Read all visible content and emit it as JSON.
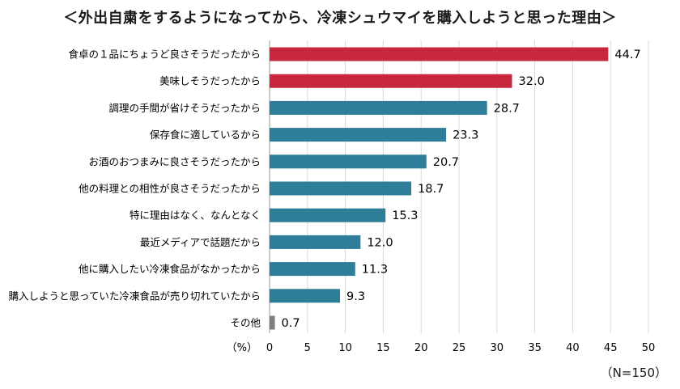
{
  "chart_data": {
    "type": "bar",
    "orientation": "horizontal",
    "title": "＜外出自粛をするようになってから、冷凍シュウマイを購入しようと思った理由＞",
    "categories": [
      "食卓の１品にちょうど良さそうだったから",
      "美味しそうだったから",
      "調理の手間が省けそうだったから",
      "保存食に適しているから",
      "お酒のおつまみに良さそうだったから",
      "他の料理との相性が良さそうだったから",
      "特に理由はなく、なんとなく",
      "最近メディアで話題だから",
      "他に購入したい冷凍食品がなかったから",
      "購入しようと思っていた冷凍食品が売り切れていたから",
      "その他"
    ],
    "values": [
      44.7,
      32.0,
      28.7,
      23.3,
      20.7,
      18.7,
      15.3,
      12.0,
      11.3,
      9.3,
      0.7
    ],
    "value_labels": [
      "44.7",
      "32.0",
      "28.7",
      "23.3",
      "20.7",
      "18.7",
      "15.3",
      "12.0",
      "11.3",
      "9.3",
      "0.7"
    ],
    "bar_colors": [
      "#c8283e",
      "#c8283e",
      "#2e7d99",
      "#2e7d99",
      "#2e7d99",
      "#2e7d99",
      "#2e7d99",
      "#2e7d99",
      "#2e7d99",
      "#2e7d99",
      "#7f7f7f"
    ],
    "xlim": [
      0,
      50
    ],
    "x_ticks": [
      0,
      5,
      10,
      15,
      20,
      25,
      30,
      35,
      40,
      45,
      50
    ],
    "xlabel": "（%）",
    "grid": "vertical",
    "note": "（N=150）"
  }
}
